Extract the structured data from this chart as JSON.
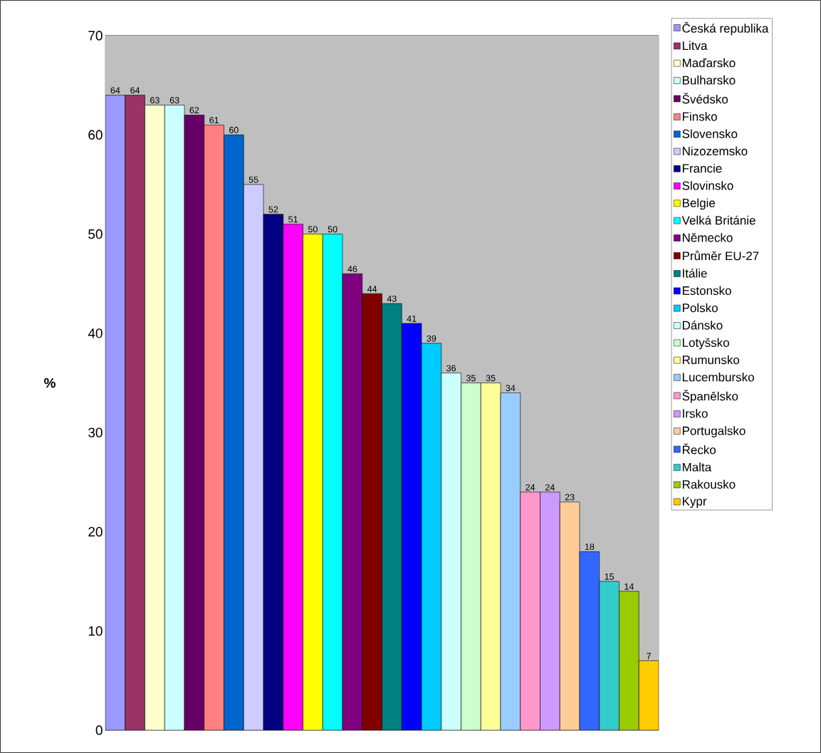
{
  "chart_data": {
    "type": "bar",
    "ylabel": "%",
    "categories": [
      null
    ],
    "ylim": [
      0,
      70
    ],
    "yticks": [
      0,
      10,
      20,
      30,
      40,
      50,
      60,
      70
    ],
    "grid": "y",
    "legend": "right",
    "data_labels": true,
    "series": [
      {
        "name": "Česká republika",
        "color": "#9999ff",
        "values": [
          64
        ]
      },
      {
        "name": "Litva",
        "color": "#993366",
        "values": [
          64
        ]
      },
      {
        "name": "Maďarsko",
        "color": "#ffffcc",
        "values": [
          63
        ]
      },
      {
        "name": "Bulharsko",
        "color": "#ccffff",
        "values": [
          63
        ]
      },
      {
        "name": "Švédsko",
        "color": "#660066",
        "values": [
          62
        ]
      },
      {
        "name": "Finsko",
        "color": "#ff8080",
        "values": [
          61
        ]
      },
      {
        "name": "Slovensko",
        "color": "#0066cc",
        "values": [
          60
        ]
      },
      {
        "name": "Nizozemsko",
        "color": "#ccccff",
        "values": [
          55
        ]
      },
      {
        "name": "Francie",
        "color": "#000080",
        "values": [
          52
        ]
      },
      {
        "name": "Slovinsko",
        "color": "#ff00ff",
        "values": [
          51
        ]
      },
      {
        "name": "Belgie",
        "color": "#ffff00",
        "values": [
          50
        ]
      },
      {
        "name": "Velká Británie",
        "color": "#00ffff",
        "values": [
          50
        ]
      },
      {
        "name": "Německo",
        "color": "#800080",
        "values": [
          46
        ]
      },
      {
        "name": "Průměr EU-27",
        "color": "#800000",
        "values": [
          44
        ]
      },
      {
        "name": "Itálie",
        "color": "#008080",
        "values": [
          43
        ]
      },
      {
        "name": "Estonsko",
        "color": "#0000ff",
        "values": [
          41
        ]
      },
      {
        "name": "Polsko",
        "color": "#00ccff",
        "values": [
          39
        ]
      },
      {
        "name": "Dánsko",
        "color": "#ccffff",
        "values": [
          36
        ]
      },
      {
        "name": "Lotyšsko",
        "color": "#ccffcc",
        "values": [
          35
        ]
      },
      {
        "name": "Rumunsko",
        "color": "#ffff99",
        "values": [
          35
        ]
      },
      {
        "name": "Lucembursko",
        "color": "#99ccff",
        "values": [
          34
        ]
      },
      {
        "name": "Španělsko",
        "color": "#ff99cc",
        "values": [
          24
        ]
      },
      {
        "name": "Irsko",
        "color": "#cc99ff",
        "values": [
          24
        ]
      },
      {
        "name": "Portugalsko",
        "color": "#ffcc99",
        "values": [
          23
        ]
      },
      {
        "name": "Řecko",
        "color": "#3366ff",
        "values": [
          18
        ]
      },
      {
        "name": "Malta",
        "color": "#33cccc",
        "values": [
          15
        ]
      },
      {
        "name": "Rakousko",
        "color": "#99cc00",
        "values": [
          14
        ]
      },
      {
        "name": "Kypr",
        "color": "#ffcc00",
        "values": [
          7
        ]
      }
    ]
  }
}
